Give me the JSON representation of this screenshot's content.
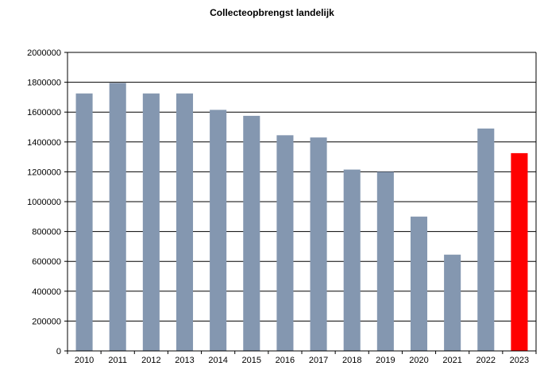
{
  "chart_data": {
    "type": "bar",
    "title": "Collecteopbrengst landelijk",
    "xlabel": "",
    "ylabel": "",
    "categories": [
      "2010",
      "2011",
      "2012",
      "2013",
      "2014",
      "2015",
      "2016",
      "2017",
      "2018",
      "2019",
      "2020",
      "2021",
      "2022",
      "2023"
    ],
    "values": [
      1725000,
      1795000,
      1725000,
      1725000,
      1615000,
      1575000,
      1445000,
      1430000,
      1215000,
      1200000,
      900000,
      645000,
      1490000,
      1325000
    ],
    "ylim": [
      0,
      2000000
    ],
    "yticks": [
      0,
      200000,
      400000,
      600000,
      800000,
      1000000,
      1200000,
      1400000,
      1600000,
      1800000,
      2000000
    ],
    "ytick_labels": [
      "0",
      "200000",
      "400000",
      "600000",
      "800000",
      "1000000",
      "1200000",
      "1400000",
      "1600000",
      "1800000",
      "2000000"
    ],
    "grid": true,
    "colors": {
      "bar": "#8497b0",
      "highlight_bar": "#ff0000",
      "highlight_category": "2023",
      "grid": "#000000"
    }
  }
}
